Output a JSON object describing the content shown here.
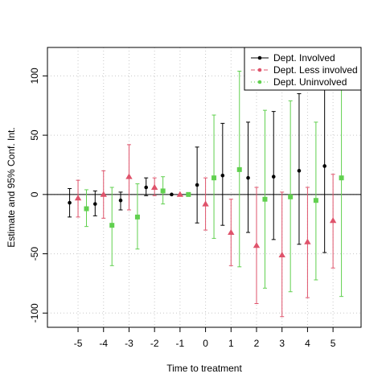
{
  "chart_data": {
    "type": "scatter",
    "title": "",
    "xlabel": "Time to treatment",
    "ylabel": "Estimate and 95% Conf. Int.",
    "x_ticks": [
      "-5",
      "-4",
      "-3",
      "-2",
      "-1",
      "0",
      "1",
      "2",
      "3",
      "4",
      "5"
    ],
    "y_ticks": [
      "-100",
      "-50",
      "0",
      "50",
      "100"
    ],
    "xlim": [
      -6.2,
      6.1
    ],
    "ylim": [
      -112,
      124
    ],
    "grid": true,
    "reference_line_y": 0,
    "legend_position": "top-right",
    "series": [
      {
        "name": "Dept. Involved",
        "color": "#000000",
        "marker": "circle",
        "x": [
          -5,
          -4,
          -3,
          -2,
          -1,
          0,
          1,
          2,
          3,
          4,
          5
        ],
        "values": [
          -7,
          -8,
          -5,
          6,
          0,
          8,
          16,
          14,
          15,
          20,
          24
        ],
        "ci_low": [
          -19,
          -18,
          -13,
          -1,
          0,
          -24,
          -26,
          -32,
          -38,
          -42,
          -49
        ],
        "ci_high": [
          5,
          3,
          2,
          14,
          0,
          40,
          60,
          61,
          70,
          85,
          100
        ]
      },
      {
        "name": "Dept. Less involved",
        "color": "#DF536B",
        "marker": "triangle",
        "x": [
          -5,
          -4,
          -3,
          -2,
          -1,
          0,
          1,
          2,
          3,
          4,
          5
        ],
        "values": [
          -3,
          0,
          15,
          6,
          0,
          -8,
          -32,
          -43,
          -51,
          -40,
          -22
        ],
        "ci_low": [
          -19,
          -20,
          -13,
          -1,
          0,
          -30,
          -60,
          -92,
          -103,
          -87,
          -62
        ],
        "ci_high": [
          12,
          20,
          42,
          14,
          0,
          14,
          -4,
          6,
          2,
          6,
          17
        ]
      },
      {
        "name": "Dept. Uninvolved",
        "color": "#61D04F",
        "marker": "square",
        "x": [
          -5,
          -4,
          -3,
          -2,
          -1,
          0,
          1,
          2,
          3,
          4,
          5
        ],
        "values": [
          -12,
          -26,
          -19,
          3,
          0,
          14,
          21,
          -4,
          -2,
          -5,
          14
        ],
        "ci_low": [
          -27,
          -60,
          -46,
          -8,
          0,
          -37,
          -61,
          -79,
          -82,
          -72,
          -86
        ],
        "ci_high": [
          4,
          6,
          9,
          15,
          0,
          67,
          104,
          71,
          79,
          61,
          100
        ]
      }
    ]
  }
}
